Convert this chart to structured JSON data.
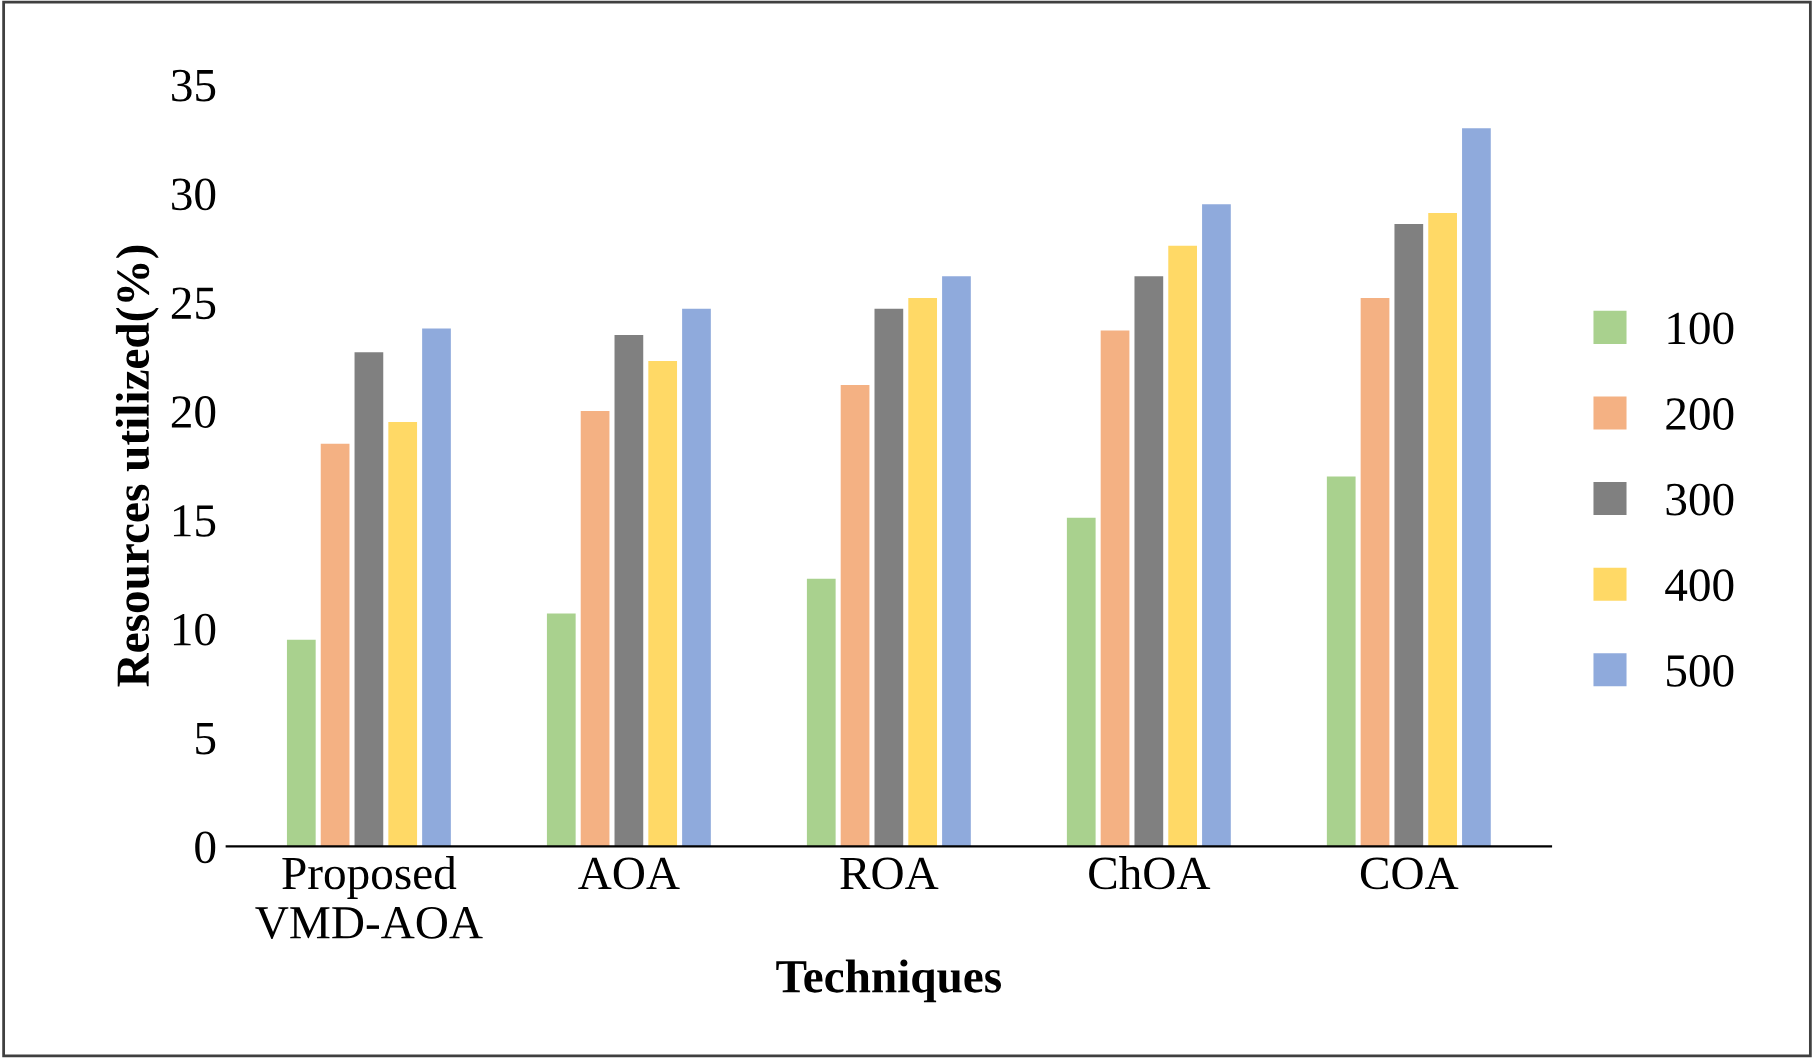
{
  "chart_data": {
    "type": "bar",
    "xlabel": "Techniques",
    "ylabel": "Resources utilized(%)",
    "categories": [
      "Proposed\nVMD-AOA",
      "AOA",
      "ROA",
      "ChOA",
      "COA"
    ],
    "series": [
      {
        "name": "100",
        "color": "#a9d18e",
        "values": [
          9.5,
          10.7,
          12.3,
          15.1,
          17.0
        ]
      },
      {
        "name": "200",
        "color": "#f4b183",
        "values": [
          18.5,
          20.0,
          21.2,
          23.7,
          25.2
        ]
      },
      {
        "name": "300",
        "color": "#808080",
        "values": [
          22.7,
          23.5,
          24.7,
          26.2,
          28.6
        ]
      },
      {
        "name": "400",
        "color": "#ffd966",
        "values": [
          19.5,
          22.3,
          25.2,
          27.6,
          29.1
        ]
      },
      {
        "name": "500",
        "color": "#8faadc",
        "values": [
          23.8,
          24.7,
          26.2,
          29.5,
          33.0
        ]
      }
    ],
    "ylim": [
      0,
      35
    ],
    "yticks": [
      0,
      5,
      10,
      15,
      20,
      25,
      30,
      35
    ],
    "grid": false,
    "legend": "right"
  }
}
